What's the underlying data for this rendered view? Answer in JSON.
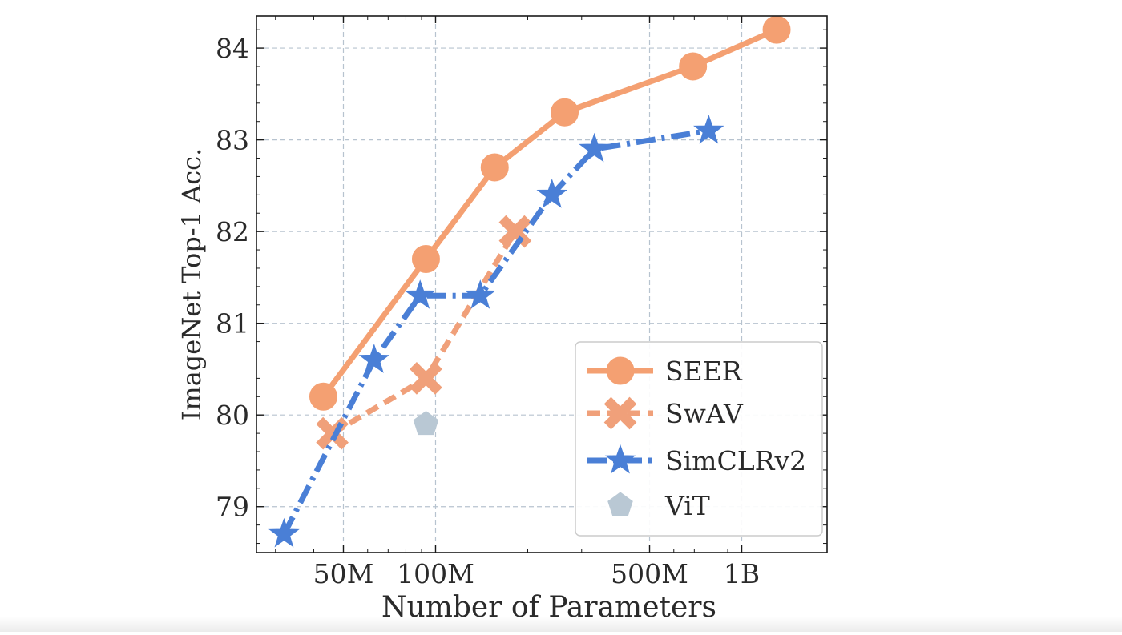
{
  "chart_data": {
    "type": "line",
    "xlabel": "Number of Parameters",
    "ylabel": "ImageNet Top-1 Acc.",
    "xscale": "log",
    "xlim": [
      26000000,
      1900000000
    ],
    "ylim": [
      78.5,
      84.35
    ],
    "grid": true,
    "legend_position": "bottom-right",
    "x_ticks": [
      {
        "value": 50000000,
        "label": "50M"
      },
      {
        "value": 100000000,
        "label": "100M"
      },
      {
        "value": 500000000,
        "label": "500M"
      },
      {
        "value": 1000000000,
        "label": "1B"
      }
    ],
    "y_ticks": [
      {
        "value": 79,
        "label": "79"
      },
      {
        "value": 80,
        "label": "80"
      },
      {
        "value": 81,
        "label": "81"
      },
      {
        "value": 82,
        "label": "82"
      },
      {
        "value": 83,
        "label": "83"
      },
      {
        "value": 84,
        "label": "84"
      }
    ],
    "series": [
      {
        "name": "SEER",
        "color": "#f4a072",
        "marker": "circle",
        "linestyle": "solid",
        "x": [
          43000000,
          93000000,
          156000000,
          264000000,
          693000000,
          1300000000
        ],
        "y": [
          80.2,
          81.7,
          82.7,
          83.3,
          83.8,
          84.2
        ]
      },
      {
        "name": "SwAV",
        "color": "#f0a07a",
        "marker": "x-cross",
        "linestyle": "dashed",
        "x": [
          46000000,
          93000000,
          182000000
        ],
        "y": [
          79.8,
          80.4,
          82.0
        ]
      },
      {
        "name": "SimCLRv2",
        "color": "#4a7fd6",
        "marker": "star",
        "linestyle": "dashdot",
        "x": [
          32000000,
          63000000,
          89000000,
          140000000,
          240000000,
          330000000,
          780000000
        ],
        "y": [
          78.7,
          80.6,
          81.3,
          81.3,
          82.4,
          82.9,
          83.1
        ]
      },
      {
        "name": "ViT",
        "color": "#b9c8d4",
        "marker": "pentagon",
        "linestyle": "none",
        "x": [
          93000000
        ],
        "y": [
          79.9
        ]
      }
    ]
  }
}
